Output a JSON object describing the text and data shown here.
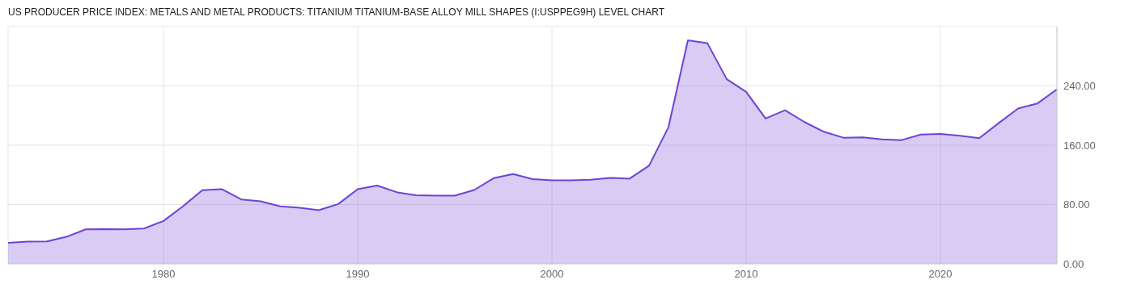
{
  "chart_data": {
    "type": "area",
    "title": "US PRODUCER PRICE INDEX: METALS AND METAL PRODUCTS: TITANIUM TITANIUM-BASE ALLOY MILL SHAPES (I:USPPEG9H) LEVEL CHART",
    "x": [
      1972,
      1973,
      1974,
      1975,
      1976,
      1977,
      1978,
      1979,
      1980,
      1981,
      1982,
      1983,
      1984,
      1985,
      1986,
      1987,
      1988,
      1989,
      1990,
      1991,
      1992,
      1993,
      1994,
      1995,
      1996,
      1997,
      1998,
      1999,
      2000,
      2001,
      2002,
      2003,
      2004,
      2005,
      2006,
      2007,
      2008,
      2009,
      2010,
      2011,
      2012,
      2013,
      2014,
      2015,
      2016,
      2017,
      2018,
      2019,
      2020,
      2021,
      2022,
      2023,
      2024,
      2025,
      2026
    ],
    "series": [
      {
        "color": "#6f42d6",
        "values": [
          28.4,
          29.8,
          30.2,
          36.4,
          46.5,
          46.9,
          46.5,
          47.6,
          57.8,
          77.5,
          99.3,
          100.7,
          86.9,
          84.4,
          77.5,
          75.6,
          72.4,
          80.7,
          100.7,
          105.5,
          96.7,
          92.4,
          92,
          92,
          99.6,
          115.6,
          121.1,
          114.2,
          112.7,
          112.7,
          113.5,
          116,
          114.9,
          132.4,
          184.4,
          301.5,
          297.8,
          249.1,
          232,
          196,
          207.3,
          191.3,
          178.2,
          170.2,
          170.5,
          168,
          166.9,
          174.5,
          175.3,
          172.7,
          169.5,
          189.8,
          209.5,
          216.4,
          235.3
        ]
      }
    ],
    "xlim": [
      1972,
      2026
    ],
    "xticks": [
      1980,
      1990,
      2000,
      2010,
      2020
    ],
    "ylim": [
      0,
      320
    ],
    "yticks": [
      {
        "value": 0,
        "label": "0.00"
      },
      {
        "value": 80,
        "label": "80.00"
      },
      {
        "value": 160,
        "label": "160.00"
      },
      {
        "value": 240,
        "label": "240.00"
      }
    ],
    "grid": true
  }
}
